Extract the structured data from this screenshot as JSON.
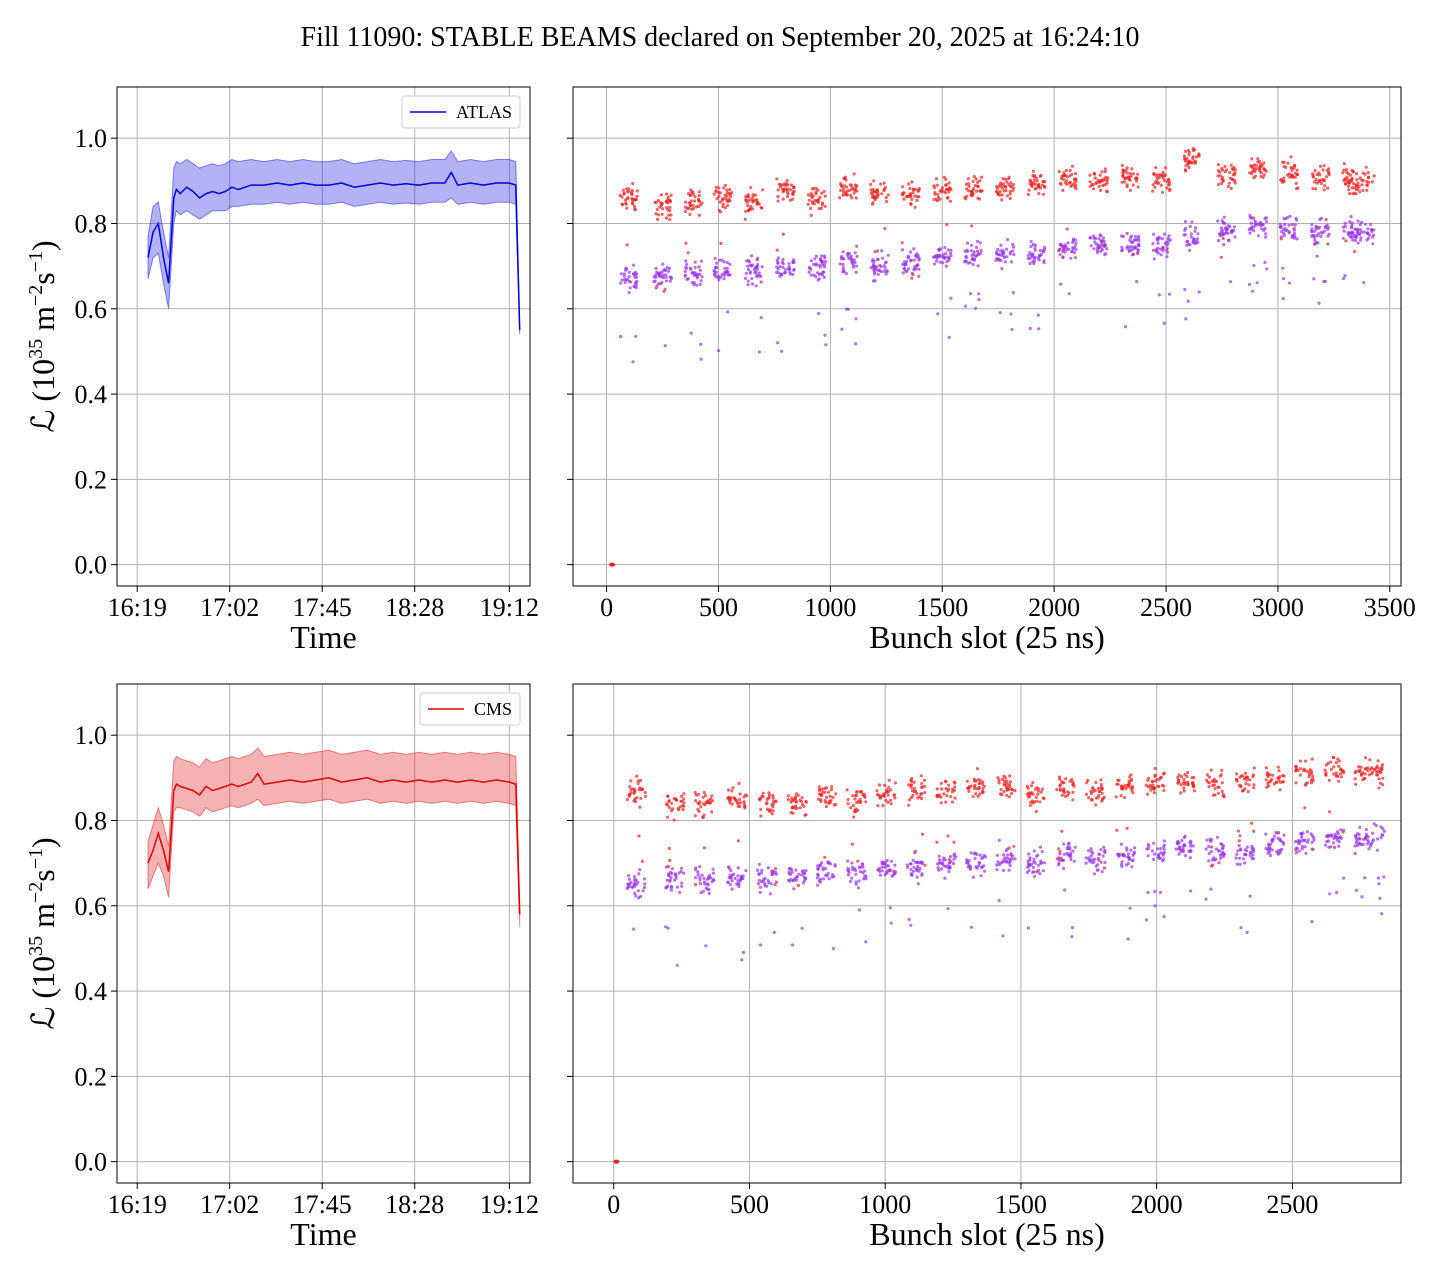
{
  "title": "Fill 11090: STABLE BEAMS declared on September 20, 2025 at 16:24:10",
  "ylabel_parts": [
    "ℒ (10",
    "35",
    " m",
    "−2",
    "s",
    "−1",
    ")"
  ],
  "colors": {
    "atlas": "#0000dd",
    "cms": "#dd0000",
    "scatter_high": "#ee2222",
    "scatter_low": "#9933ee"
  },
  "chart_data": [
    {
      "id": "atlas-time",
      "type": "line",
      "legend": "ATLAS",
      "legend_position": "top-right",
      "xlabel": "Time",
      "ylabel": "ℒ (10^35 m^-2 s^-1)",
      "grid": true,
      "xlim": [
        16.16,
        19.36
      ],
      "ylim": [
        -0.05,
        1.12
      ],
      "xticks": [
        16.3167,
        17.0333,
        17.75,
        18.4667,
        19.2
      ],
      "xtick_labels": [
        "16:19",
        "17:02",
        "17:45",
        "18:28",
        "19:12"
      ],
      "yticks": [
        0.0,
        0.2,
        0.4,
        0.6,
        0.8,
        1.0
      ],
      "ytick_labels": [
        "0.0",
        "0.2",
        "0.4",
        "0.6",
        "0.8",
        "1.0"
      ],
      "x": [
        16.4,
        16.44,
        16.48,
        16.52,
        16.56,
        16.6,
        16.62,
        16.65,
        16.7,
        16.75,
        16.8,
        16.85,
        16.9,
        16.95,
        17.0,
        17.05,
        17.1,
        17.2,
        17.3,
        17.4,
        17.5,
        17.6,
        17.7,
        17.8,
        17.9,
        18.0,
        18.1,
        18.2,
        18.3,
        18.4,
        18.5,
        18.6,
        18.7,
        18.75,
        18.8,
        18.9,
        19.0,
        19.1,
        19.2,
        19.25,
        19.28
      ],
      "y": [
        0.72,
        0.78,
        0.8,
        0.72,
        0.66,
        0.86,
        0.88,
        0.87,
        0.885,
        0.875,
        0.86,
        0.87,
        0.875,
        0.87,
        0.875,
        0.885,
        0.88,
        0.89,
        0.89,
        0.895,
        0.89,
        0.895,
        0.89,
        0.89,
        0.895,
        0.885,
        0.89,
        0.895,
        0.89,
        0.893,
        0.89,
        0.895,
        0.895,
        0.92,
        0.89,
        0.895,
        0.89,
        0.895,
        0.895,
        0.89,
        0.55
      ],
      "band_lower": [
        0.67,
        0.72,
        0.73,
        0.66,
        0.6,
        0.8,
        0.83,
        0.82,
        0.83,
        0.82,
        0.81,
        0.82,
        0.83,
        0.83,
        0.83,
        0.84,
        0.84,
        0.845,
        0.845,
        0.85,
        0.845,
        0.85,
        0.845,
        0.845,
        0.85,
        0.84,
        0.845,
        0.85,
        0.845,
        0.848,
        0.845,
        0.85,
        0.85,
        0.86,
        0.845,
        0.85,
        0.845,
        0.85,
        0.85,
        0.845,
        0.54
      ],
      "band_upper": [
        0.77,
        0.84,
        0.85,
        0.78,
        0.72,
        0.93,
        0.945,
        0.94,
        0.95,
        0.94,
        0.93,
        0.935,
        0.94,
        0.935,
        0.94,
        0.95,
        0.945,
        0.95,
        0.945,
        0.95,
        0.945,
        0.95,
        0.945,
        0.945,
        0.95,
        0.94,
        0.945,
        0.95,
        0.945,
        0.948,
        0.945,
        0.95,
        0.95,
        0.97,
        0.945,
        0.95,
        0.945,
        0.95,
        0.95,
        0.945,
        0.56
      ]
    },
    {
      "id": "atlas-bunch",
      "type": "scatter",
      "xlabel": "Bunch slot (25 ns)",
      "grid": true,
      "xlim": [
        -150,
        3550
      ],
      "ylim": [
        -0.05,
        1.12
      ],
      "xticks": [
        0,
        500,
        1000,
        1500,
        2000,
        2500,
        3000,
        3500
      ],
      "xtick_labels": [
        "0",
        "500",
        "1000",
        "1500",
        "2000",
        "2500",
        "3000",
        "3500"
      ],
      "yticks": [
        0.0,
        0.2,
        0.4,
        0.6,
        0.8,
        1.0
      ],
      "series": [
        {
          "name": "",
          "color": "#ee2222",
          "trains": [
            [
              60,
              140,
              0.86
            ],
            [
              210,
              290,
              0.84
            ],
            [
              350,
              430,
              0.85
            ],
            [
              480,
              560,
              0.86
            ],
            [
              620,
              700,
              0.85
            ],
            [
              760,
              840,
              0.88
            ],
            [
              900,
              980,
              0.86
            ],
            [
              1040,
              1120,
              0.88
            ],
            [
              1180,
              1260,
              0.87
            ],
            [
              1320,
              1400,
              0.87
            ],
            [
              1460,
              1540,
              0.88
            ],
            [
              1600,
              1680,
              0.88
            ],
            [
              1740,
              1820,
              0.88
            ],
            [
              1880,
              1960,
              0.89
            ],
            [
              2020,
              2100,
              0.9
            ],
            [
              2160,
              2240,
              0.9
            ],
            [
              2300,
              2380,
              0.91
            ],
            [
              2440,
              2520,
              0.9
            ],
            [
              2580,
              2650,
              0.95
            ],
            [
              2730,
              2810,
              0.91
            ],
            [
              2870,
              2950,
              0.93
            ],
            [
              3010,
              3090,
              0.92
            ],
            [
              3150,
              3230,
              0.91
            ],
            [
              3290,
              3430,
              0.9
            ]
          ],
          "empty_point": [
            25,
            0.0
          ]
        },
        {
          "name": "",
          "color": "#9933ee",
          "trains": [
            [
              60,
              140,
              0.67
            ],
            [
              210,
              290,
              0.68
            ],
            [
              350,
              430,
              0.68
            ],
            [
              480,
              560,
              0.69
            ],
            [
              620,
              700,
              0.69
            ],
            [
              760,
              840,
              0.7
            ],
            [
              900,
              980,
              0.7
            ],
            [
              1040,
              1120,
              0.71
            ],
            [
              1180,
              1260,
              0.7
            ],
            [
              1320,
              1400,
              0.71
            ],
            [
              1460,
              1540,
              0.72
            ],
            [
              1600,
              1680,
              0.73
            ],
            [
              1740,
              1820,
              0.73
            ],
            [
              1880,
              1960,
              0.73
            ],
            [
              2020,
              2100,
              0.74
            ],
            [
              2160,
              2240,
              0.75
            ],
            [
              2300,
              2380,
              0.75
            ],
            [
              2440,
              2520,
              0.75
            ],
            [
              2580,
              2650,
              0.77
            ],
            [
              2730,
              2810,
              0.78
            ],
            [
              2870,
              2950,
              0.79
            ],
            [
              3010,
              3090,
              0.79
            ],
            [
              3150,
              3230,
              0.78
            ],
            [
              3290,
              3430,
              0.78
            ]
          ]
        }
      ]
    },
    {
      "id": "cms-time",
      "type": "line",
      "legend": "CMS",
      "legend_position": "top-right",
      "xlabel": "Time",
      "ylabel": "ℒ (10^35 m^-2 s^-1)",
      "grid": true,
      "xlim": [
        16.16,
        19.36
      ],
      "ylim": [
        -0.05,
        1.12
      ],
      "xticks": [
        16.3167,
        17.0333,
        17.75,
        18.4667,
        19.2
      ],
      "xtick_labels": [
        "16:19",
        "17:02",
        "17:45",
        "18:28",
        "19:12"
      ],
      "yticks": [
        0.0,
        0.2,
        0.4,
        0.6,
        0.8,
        1.0
      ],
      "ytick_labels": [
        "0.0",
        "0.2",
        "0.4",
        "0.6",
        "0.8",
        "1.0"
      ],
      "x": [
        16.4,
        16.44,
        16.48,
        16.52,
        16.56,
        16.6,
        16.62,
        16.65,
        16.7,
        16.75,
        16.8,
        16.85,
        16.9,
        16.95,
        17.0,
        17.05,
        17.1,
        17.2,
        17.25,
        17.3,
        17.4,
        17.5,
        17.6,
        17.7,
        17.8,
        17.9,
        18.0,
        18.1,
        18.2,
        18.3,
        18.4,
        18.5,
        18.6,
        18.7,
        18.8,
        18.9,
        19.0,
        19.1,
        19.2,
        19.25,
        19.28
      ],
      "y": [
        0.7,
        0.73,
        0.77,
        0.73,
        0.68,
        0.87,
        0.885,
        0.88,
        0.875,
        0.87,
        0.86,
        0.88,
        0.87,
        0.875,
        0.88,
        0.885,
        0.88,
        0.89,
        0.91,
        0.885,
        0.89,
        0.895,
        0.89,
        0.895,
        0.9,
        0.89,
        0.895,
        0.9,
        0.89,
        0.895,
        0.89,
        0.895,
        0.89,
        0.895,
        0.89,
        0.895,
        0.89,
        0.895,
        0.89,
        0.885,
        0.58
      ],
      "band_lower": [
        0.64,
        0.67,
        0.7,
        0.67,
        0.62,
        0.82,
        0.83,
        0.83,
        0.825,
        0.82,
        0.81,
        0.83,
        0.82,
        0.825,
        0.83,
        0.835,
        0.83,
        0.84,
        0.85,
        0.835,
        0.84,
        0.845,
        0.84,
        0.845,
        0.85,
        0.84,
        0.845,
        0.85,
        0.84,
        0.845,
        0.84,
        0.845,
        0.84,
        0.845,
        0.84,
        0.845,
        0.84,
        0.845,
        0.84,
        0.835,
        0.55
      ],
      "band_upper": [
        0.75,
        0.79,
        0.83,
        0.79,
        0.74,
        0.94,
        0.95,
        0.945,
        0.94,
        0.935,
        0.925,
        0.945,
        0.935,
        0.94,
        0.945,
        0.95,
        0.945,
        0.955,
        0.97,
        0.95,
        0.955,
        0.96,
        0.955,
        0.96,
        0.965,
        0.955,
        0.96,
        0.965,
        0.955,
        0.96,
        0.955,
        0.96,
        0.955,
        0.96,
        0.955,
        0.96,
        0.955,
        0.96,
        0.955,
        0.95,
        0.61
      ]
    },
    {
      "id": "cms-bunch",
      "type": "scatter",
      "xlabel": "Bunch slot (25 ns)",
      "grid": true,
      "xlim": [
        -150,
        2900
      ],
      "ylim": [
        -0.05,
        1.12
      ],
      "xticks": [
        0,
        500,
        1000,
        1500,
        2000,
        2500
      ],
      "xtick_labels": [
        "0",
        "500",
        "1000",
        "1500",
        "2000",
        "2500"
      ],
      "yticks": [
        0.0,
        0.2,
        0.4,
        0.6,
        0.8,
        1.0
      ],
      "series": [
        {
          "name": "",
          "color": "#ee2222",
          "trains": [
            [
              50,
              120,
              0.87
            ],
            [
              190,
              260,
              0.84
            ],
            [
              300,
              370,
              0.84
            ],
            [
              420,
              490,
              0.85
            ],
            [
              530,
              600,
              0.84
            ],
            [
              640,
              710,
              0.84
            ],
            [
              750,
              820,
              0.86
            ],
            [
              860,
              930,
              0.85
            ],
            [
              970,
              1040,
              0.86
            ],
            [
              1080,
              1150,
              0.87
            ],
            [
              1190,
              1260,
              0.87
            ],
            [
              1300,
              1370,
              0.88
            ],
            [
              1410,
              1480,
              0.88
            ],
            [
              1520,
              1590,
              0.86
            ],
            [
              1630,
              1700,
              0.88
            ],
            [
              1740,
              1810,
              0.87
            ],
            [
              1850,
              1920,
              0.88
            ],
            [
              1960,
              2030,
              0.89
            ],
            [
              2070,
              2140,
              0.89
            ],
            [
              2180,
              2250,
              0.89
            ],
            [
              2290,
              2360,
              0.89
            ],
            [
              2400,
              2470,
              0.9
            ],
            [
              2510,
              2580,
              0.91
            ],
            [
              2620,
              2690,
              0.92
            ],
            [
              2730,
              2840,
              0.91
            ]
          ],
          "empty_point": [
            10,
            0.0
          ]
        },
        {
          "name": "",
          "color": "#9933ee",
          "trains": [
            [
              50,
              120,
              0.65
            ],
            [
              190,
              260,
              0.66
            ],
            [
              300,
              370,
              0.66
            ],
            [
              420,
              490,
              0.67
            ],
            [
              530,
              600,
              0.66
            ],
            [
              640,
              710,
              0.67
            ],
            [
              750,
              820,
              0.68
            ],
            [
              860,
              930,
              0.68
            ],
            [
              970,
              1040,
              0.69
            ],
            [
              1080,
              1150,
              0.69
            ],
            [
              1190,
              1260,
              0.7
            ],
            [
              1300,
              1370,
              0.7
            ],
            [
              1410,
              1480,
              0.71
            ],
            [
              1520,
              1590,
              0.7
            ],
            [
              1630,
              1700,
              0.72
            ],
            [
              1740,
              1810,
              0.71
            ],
            [
              1850,
              1920,
              0.72
            ],
            [
              1960,
              2030,
              0.73
            ],
            [
              2070,
              2140,
              0.74
            ],
            [
              2180,
              2250,
              0.73
            ],
            [
              2290,
              2360,
              0.73
            ],
            [
              2400,
              2470,
              0.74
            ],
            [
              2510,
              2580,
              0.75
            ],
            [
              2620,
              2690,
              0.76
            ],
            [
              2730,
              2840,
              0.76
            ]
          ]
        }
      ]
    }
  ]
}
